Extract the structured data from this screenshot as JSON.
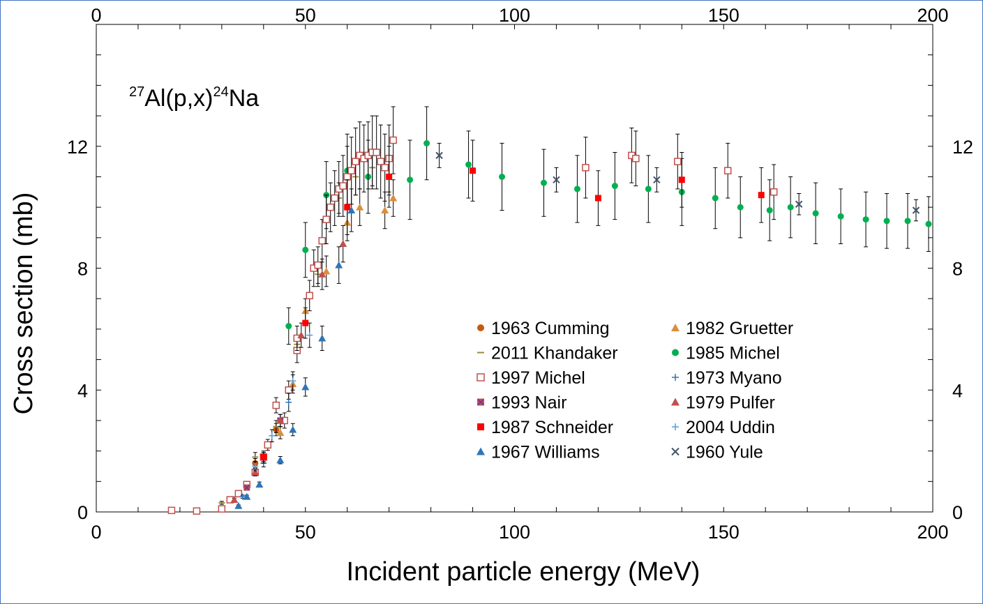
{
  "chart_data": {
    "type": "scatter",
    "title": "",
    "annotation": {
      "sup1": "27",
      "base1": "Al(p,x)",
      "sup2": "24",
      "base2": "Na"
    },
    "xlabel": "Incident particle energy (MeV)",
    "ylabel": "Cross section (mb)",
    "xlim": [
      0,
      200
    ],
    "ylim": [
      0,
      16
    ],
    "xticks": [
      0,
      50,
      100,
      150,
      200
    ],
    "yticks": [
      0,
      4,
      8,
      12
    ],
    "legend_position": "center-right",
    "series": [
      {
        "name": "1963 Cumming",
        "marker": "circle",
        "color": "#c55a11",
        "points": [
          [
            38,
            1.6,
            0.15
          ],
          [
            43,
            2.7,
            0.2
          ]
        ]
      },
      {
        "name": "1982 Gruetter",
        "marker": "triangle",
        "color": "#d98f3c",
        "points": [
          [
            44,
            2.6,
            0.2
          ],
          [
            47,
            4.2,
            0.3
          ],
          [
            50,
            6.6,
            0.4
          ],
          [
            55,
            7.9,
            0.5
          ],
          [
            60,
            9.5,
            0.6
          ],
          [
            63,
            10.0,
            0.6
          ],
          [
            69,
            9.9,
            0.6
          ],
          [
            71,
            10.3,
            0.6
          ]
        ]
      },
      {
        "name": "2011 Khandaker",
        "marker": "dash",
        "color": "#9c8a3d",
        "points": [
          [
            30,
            0.3,
            0.05
          ],
          [
            34,
            0.6,
            0.08
          ],
          [
            38,
            1.8,
            0.15
          ],
          [
            43,
            2.8,
            0.2
          ],
          [
            48,
            5.5,
            0.3
          ],
          [
            53,
            7.8,
            0.4
          ],
          [
            58,
            10.3,
            0.5
          ],
          [
            62,
            11.0,
            0.6
          ],
          [
            66,
            11.3,
            0.6
          ],
          [
            70,
            11.0,
            0.6
          ]
        ]
      },
      {
        "name": "1985 Michel",
        "marker": "circle",
        "color": "#00b050",
        "points": [
          [
            46,
            6.1,
            0.6
          ],
          [
            50,
            8.6,
            0.9
          ],
          [
            55,
            10.4,
            1.1
          ],
          [
            60,
            11.2,
            1.2
          ],
          [
            65,
            11.0,
            1.2
          ],
          [
            75,
            10.9,
            1.3
          ],
          [
            79,
            12.1,
            1.2
          ],
          [
            89,
            11.4,
            1.1
          ],
          [
            97,
            11.0,
            1.1
          ],
          [
            107,
            10.8,
            1.1
          ],
          [
            115,
            10.6,
            1.1
          ],
          [
            124,
            10.7,
            1.1
          ],
          [
            132,
            10.6,
            1.1
          ],
          [
            140,
            10.5,
            1.1
          ],
          [
            148,
            10.3,
            1.0
          ],
          [
            154,
            10.0,
            1.0
          ],
          [
            161,
            9.9,
            1.0
          ],
          [
            166,
            10.0,
            1.0
          ],
          [
            172,
            9.8,
            1.0
          ],
          [
            178,
            9.7,
            0.9
          ],
          [
            184,
            9.6,
            0.9
          ],
          [
            189,
            9.55,
            0.9
          ],
          [
            194,
            9.55,
            0.9
          ],
          [
            199,
            9.45,
            0.9
          ]
        ]
      },
      {
        "name": "1997 Michel",
        "marker": "square-open",
        "color": "#c0504d",
        "points": [
          [
            18,
            0.05,
            0.02
          ],
          [
            24,
            0.03,
            0.02
          ],
          [
            30,
            0.1,
            0.03
          ],
          [
            32,
            0.4,
            0.05
          ],
          [
            34,
            0.6,
            0.06
          ],
          [
            36,
            0.9,
            0.08
          ],
          [
            38,
            1.3,
            0.12
          ],
          [
            40,
            1.8,
            0.15
          ],
          [
            41,
            2.2,
            0.18
          ],
          [
            43,
            3.5,
            0.25
          ],
          [
            45,
            3.0,
            0.25
          ],
          [
            46,
            4.0,
            0.3
          ],
          [
            48,
            5.3,
            0.4
          ],
          [
            48,
            5.7,
            0.4
          ],
          [
            51,
            7.1,
            0.5
          ],
          [
            52,
            8.0,
            0.6
          ],
          [
            53,
            8.1,
            0.6
          ],
          [
            54,
            8.9,
            0.7
          ],
          [
            55,
            9.6,
            0.8
          ],
          [
            56,
            10.0,
            0.8
          ],
          [
            57,
            10.3,
            0.9
          ],
          [
            58,
            10.6,
            0.9
          ],
          [
            59,
            10.7,
            1.0
          ],
          [
            60,
            11.0,
            1.0
          ],
          [
            61,
            11.2,
            1.1
          ],
          [
            62,
            11.5,
            1.1
          ],
          [
            63,
            11.7,
            1.1
          ],
          [
            64,
            11.6,
            1.1
          ],
          [
            65,
            11.7,
            1.1
          ],
          [
            66,
            11.8,
            1.2
          ],
          [
            67,
            11.8,
            1.2
          ],
          [
            68,
            11.5,
            1.2
          ],
          [
            69,
            11.3,
            1.1
          ],
          [
            70,
            11.6,
            1.1
          ],
          [
            71,
            12.2,
            1.1
          ],
          [
            117,
            11.3,
            1.0
          ],
          [
            128,
            11.7,
            0.9
          ],
          [
            129,
            11.6,
            0.9
          ],
          [
            139,
            11.5,
            0.9
          ],
          [
            151,
            11.2,
            0.9
          ],
          [
            162,
            10.5,
            0.9
          ]
        ]
      },
      {
        "name": "1973 Myano",
        "marker": "plus",
        "color": "#2e75b6",
        "points": [
          [
            35,
            0.5,
            0.05
          ],
          [
            40,
            1.6,
            0.12
          ],
          [
            46,
            3.6,
            0.3
          ]
        ]
      },
      {
        "name": "1993 Nair",
        "marker": "square-x",
        "color": "#c0504d",
        "points": [
          [
            36,
            0.8,
            0.08
          ],
          [
            40,
            1.8,
            0.15
          ],
          [
            44,
            3.0,
            0.2
          ]
        ]
      },
      {
        "name": "1979 Pulfer",
        "marker": "triangle",
        "color": "#c0504d",
        "points": [
          [
            33,
            0.4,
            0.05
          ],
          [
            38,
            1.3,
            0.1
          ],
          [
            44,
            3.0,
            0.2
          ],
          [
            49,
            5.8,
            0.4
          ],
          [
            54,
            7.8,
            0.5
          ],
          [
            59,
            8.8,
            0.6
          ]
        ]
      },
      {
        "name": "1987 Schneider",
        "marker": "square",
        "color": "#ff0000",
        "points": [
          [
            40,
            1.8,
            0.2
          ],
          [
            50,
            6.2,
            0.5
          ],
          [
            60,
            10.0,
            0.9
          ],
          [
            70,
            11.0,
            1.0
          ],
          [
            90,
            11.2,
            1.0
          ],
          [
            120,
            10.3,
            0.9
          ],
          [
            140,
            10.9,
            0.9
          ],
          [
            159,
            10.4,
            0.9
          ]
        ]
      },
      {
        "name": "2004 Uddin",
        "marker": "plus",
        "color": "#5b9bd5",
        "points": [
          [
            38,
            1.5,
            0.15
          ],
          [
            42,
            2.5,
            0.2
          ],
          [
            47,
            4.3,
            0.3
          ],
          [
            51,
            5.8,
            0.4
          ]
        ]
      },
      {
        "name": "1967 Williams",
        "marker": "triangle",
        "color": "#2e75b6",
        "points": [
          [
            34,
            0.2,
            0.03
          ],
          [
            36,
            0.5,
            0.05
          ],
          [
            39,
            0.9,
            0.08
          ],
          [
            44,
            1.7,
            0.12
          ],
          [
            47,
            2.7,
            0.2
          ],
          [
            50,
            4.1,
            0.3
          ],
          [
            54,
            5.7,
            0.4
          ],
          [
            58,
            8.1,
            0.6
          ],
          [
            61,
            9.9,
            0.7
          ]
        ]
      },
      {
        "name": "1960 Yule",
        "marker": "x",
        "color": "#44546a",
        "points": [
          [
            82,
            11.7,
            0.4
          ],
          [
            110,
            10.9,
            0.4
          ],
          [
            134,
            10.9,
            0.4
          ],
          [
            168,
            10.1,
            0.35
          ],
          [
            196,
            9.9,
            0.35
          ]
        ]
      }
    ]
  }
}
